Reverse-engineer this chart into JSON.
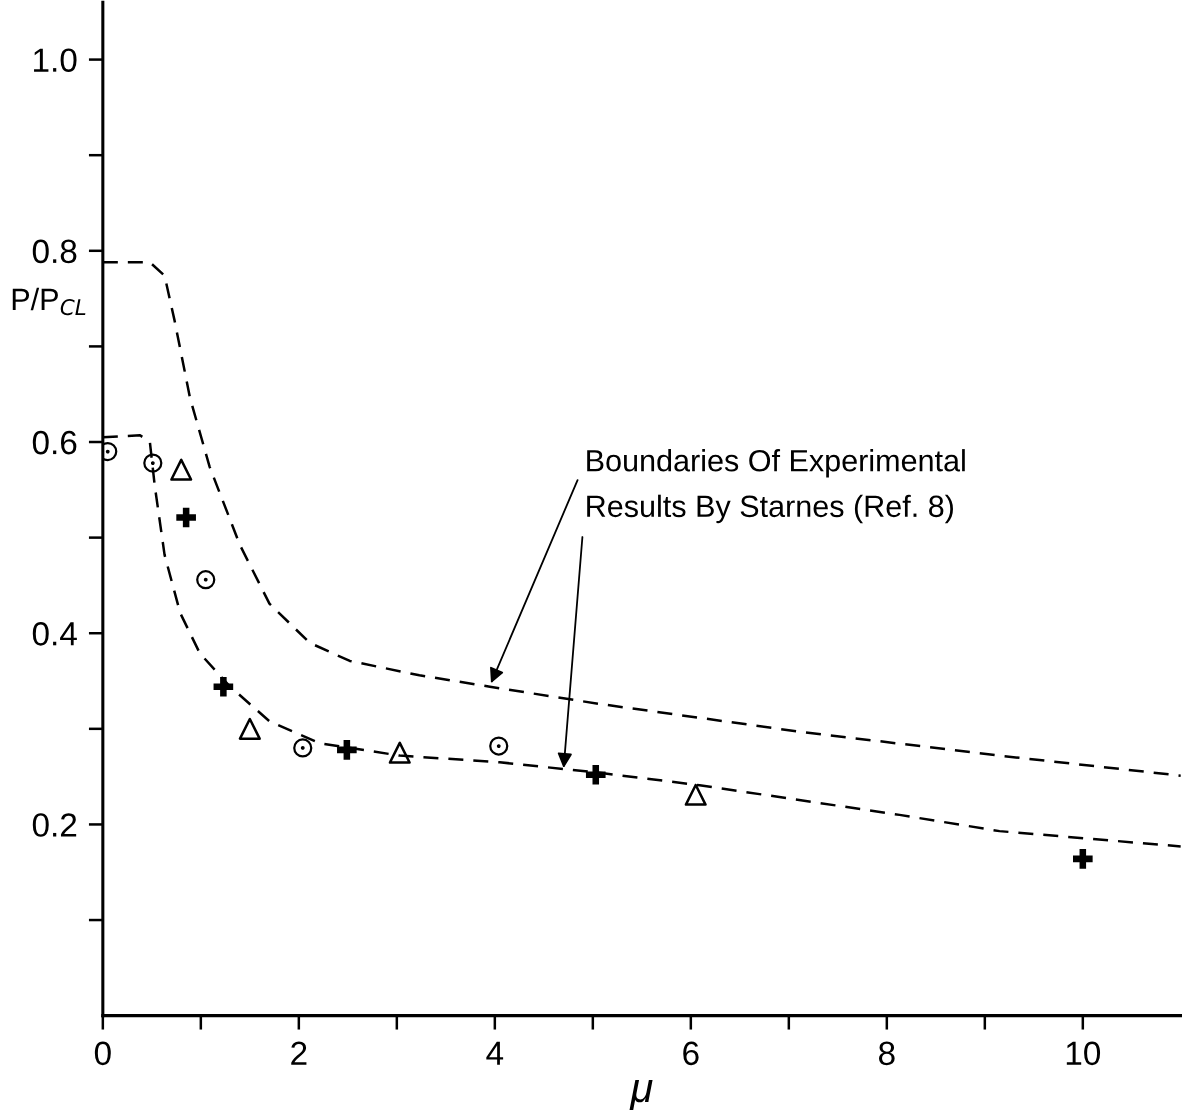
{
  "chart_data": {
    "type": "scatter",
    "xlabel": "μ",
    "ylabel": "P/P$_{CL}$",
    "xlim": [
      0,
      11
    ],
    "ylim": [
      0,
      1.06
    ],
    "xticks": [
      0,
      {
        "value": 1,
        "label": null
      },
      2,
      {
        "value": 3,
        "label": null
      },
      4,
      {
        "value": 5,
        "label": null
      },
      6,
      {
        "value": 7,
        "label": null
      },
      8,
      {
        "value": 9,
        "label": null
      },
      10
    ],
    "yticks": [
      {
        "value": 0.1,
        "label": null
      },
      0.2,
      {
        "value": 0.3,
        "label": null
      },
      0.4,
      {
        "value": 0.5,
        "label": null
      },
      0.6,
      {
        "value": 0.7,
        "label": null
      },
      0.8,
      {
        "value": 0.9,
        "label": null
      },
      {
        "value": 1.0,
        "label": "1.0"
      }
    ],
    "grid": false,
    "legend": false,
    "series": [
      {
        "type": "scatter",
        "marker": "circle",
        "color": "#000000",
        "x": [
          0.05,
          0.51,
          1.05,
          2.04,
          4.04
        ],
        "values": [
          0.59,
          0.578,
          0.456,
          0.28,
          0.282
        ]
      },
      {
        "type": "scatter",
        "marker": "cross",
        "color": "#000000",
        "x": [
          0.85,
          1.23,
          2.49,
          5.03,
          10.0
        ],
        "values": [
          0.521,
          0.344,
          0.278,
          0.252,
          0.164
        ]
      },
      {
        "type": "scatter",
        "marker": "triangle",
        "color": "#000000",
        "x": [
          0.8,
          1.5,
          3.03,
          6.05
        ],
        "values": [
          0.571,
          0.3,
          0.275,
          0.231
        ]
      },
      {
        "type": "line",
        "line_style": "dashed",
        "color": "#000000",
        "x": [
          0,
          0.48,
          0.63,
          0.73,
          0.89,
          1.09,
          1.4,
          1.7,
          2.11,
          2.52,
          3.23,
          3.95,
          5.07,
          7.11,
          9.15,
          11.0
        ],
        "values": [
          0.788,
          0.788,
          0.774,
          0.728,
          0.646,
          0.574,
          0.492,
          0.431,
          0.39,
          0.371,
          0.356,
          0.344,
          0.326,
          0.297,
          0.272,
          0.251
        ]
      },
      {
        "type": "line",
        "line_style": "dashed",
        "color": "#000000",
        "x": [
          0,
          0.38,
          0.48,
          0.53,
          0.63,
          0.79,
          0.99,
          1.3,
          1.7,
          2.21,
          3.03,
          4.05,
          5.07,
          6.09,
          8.13,
          9.15,
          11.0
        ],
        "values": [
          0.605,
          0.607,
          0.6,
          0.554,
          0.482,
          0.421,
          0.379,
          0.344,
          0.308,
          0.285,
          0.272,
          0.265,
          0.254,
          0.241,
          0.21,
          0.193,
          0.177
        ]
      }
    ],
    "annotations": [
      {
        "text": "Boundaries Of Experimental",
        "x": 3.95,
        "y": 0.345
      },
      {
        "text": "Results By Starnes (Ref. 8)",
        "x": 4.7,
        "y": 0.256
      }
    ]
  }
}
